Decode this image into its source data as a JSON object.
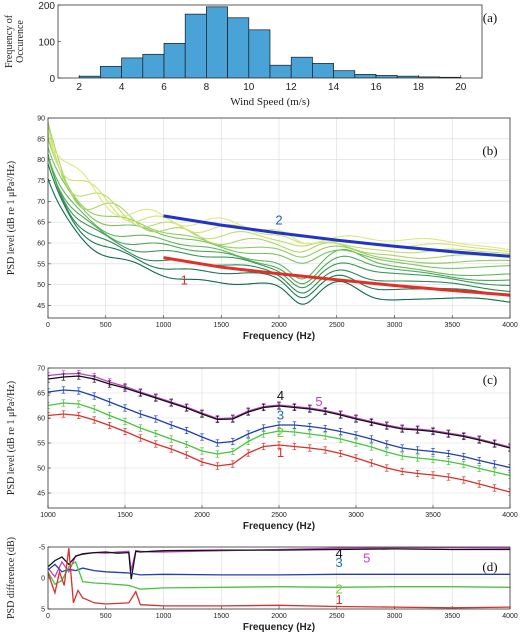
{
  "chart_data": [
    {
      "panel": "(a)",
      "type": "bar",
      "xlabel": "Wind Speed (m/s)",
      "ylabel": [
        "Frequency of",
        "Occurence"
      ],
      "xlim": [
        1,
        21
      ],
      "ylim": [
        0,
        200
      ],
      "xticks": [
        2,
        4,
        6,
        8,
        10,
        12,
        14,
        16,
        18,
        20
      ],
      "yticks": [
        0,
        100,
        200
      ],
      "bar_color": "#4aa3d6",
      "bins": [
        {
          "x0": 2,
          "x1": 3,
          "value": 5
        },
        {
          "x0": 3,
          "x1": 4,
          "value": 32
        },
        {
          "x0": 4,
          "x1": 5,
          "value": 55
        },
        {
          "x0": 5,
          "x1": 6,
          "value": 65
        },
        {
          "x0": 6,
          "x1": 7,
          "value": 95
        },
        {
          "x0": 7,
          "x1": 8,
          "value": 175
        },
        {
          "x0": 8,
          "x1": 9,
          "value": 195
        },
        {
          "x0": 9,
          "x1": 10,
          "value": 165
        },
        {
          "x0": 10,
          "x1": 11,
          "value": 132
        },
        {
          "x0": 11,
          "x1": 12,
          "value": 35
        },
        {
          "x0": 12,
          "x1": 13,
          "value": 57
        },
        {
          "x0": 13,
          "x1": 14,
          "value": 40
        },
        {
          "x0": 14,
          "x1": 15,
          "value": 20
        },
        {
          "x0": 15,
          "x1": 16,
          "value": 10
        },
        {
          "x0": 16,
          "x1": 17,
          "value": 7
        },
        {
          "x0": 17,
          "x1": 18,
          "value": 5
        },
        {
          "x0": 18,
          "x1": 19,
          "value": 3
        },
        {
          "x0": 19,
          "x1": 20,
          "value": 2
        }
      ]
    },
    {
      "panel": "(b)",
      "type": "line",
      "xlabel": "Frequency (Hz)",
      "ylabel": "PSD level (dB re 1 μPa²/Hz)",
      "xlim": [
        0,
        4000
      ],
      "ylim": [
        42,
        90
      ],
      "xticks": [
        0,
        500,
        1000,
        1500,
        2000,
        2500,
        3000,
        3500,
        4000
      ],
      "yticks": [
        45,
        50,
        55,
        60,
        65,
        70,
        75,
        80,
        85,
        90
      ],
      "grid": true,
      "family_colors": [
        "#0f6b4c",
        "#1c7a50",
        "#2a8a55",
        "#3a9a58",
        "#4da95a",
        "#62b65c",
        "#7ac25e",
        "#92cc62",
        "#a9d566",
        "#bedd6c",
        "#d0e473",
        "#dde97c"
      ],
      "family_levels_at_4000": [
        44.5,
        46.5,
        48,
        49.5,
        50.5,
        51.5,
        53,
        54,
        55,
        56,
        57,
        58
      ],
      "series": [
        {
          "name": "1",
          "color": "#e0302a",
          "x": [
            1000,
            1500,
            2000,
            2500,
            3000,
            3500,
            4000
          ],
          "y": [
            56.5,
            54.2,
            52.6,
            51.2,
            49.8,
            48.6,
            47.5
          ]
        },
        {
          "name": "2",
          "color": "#2035c8",
          "x": [
            1000,
            1500,
            2000,
            2500,
            3000,
            3500,
            4000
          ],
          "y": [
            66.5,
            64.3,
            62.4,
            60.7,
            59.2,
            57.9,
            56.8
          ]
        }
      ],
      "annotations": [
        {
          "text": "2",
          "x": 2000,
          "y": 64.5,
          "color": "#2a5fa8"
        },
        {
          "text": "1",
          "x": 1180,
          "y": 50,
          "color": "#d8302a"
        }
      ]
    },
    {
      "panel": "(c)",
      "type": "line",
      "xlabel": "Frequency (Hz)",
      "ylabel": "PSD level (dB re 1 μPa²/Hz)",
      "xlim": [
        1000,
        4000
      ],
      "ylim": [
        42,
        70
      ],
      "xticks": [
        1000,
        1500,
        2000,
        2500,
        3000,
        3500,
        4000
      ],
      "yticks": [
        45,
        50,
        55,
        60,
        65,
        70
      ],
      "grid": true,
      "error_bars": true,
      "x": [
        1000,
        1100,
        1200,
        1300,
        1400,
        1500,
        1600,
        1700,
        1800,
        1900,
        2000,
        2100,
        2200,
        2300,
        2400,
        2500,
        2600,
        2700,
        2800,
        2900,
        3000,
        3100,
        3200,
        3300,
        3400,
        3500,
        3600,
        3700,
        3800,
        3900,
        4000
      ],
      "series": [
        {
          "name": "5",
          "color": "#c040c8",
          "y": [
            68.5,
            68.8,
            68.9,
            68.3,
            67.2,
            66.3,
            65.2,
            64.2,
            63.2,
            62.2,
            61.0,
            59.9,
            60.0,
            61.4,
            62.3,
            62.6,
            62.3,
            62.0,
            61.5,
            60.8,
            60.0,
            59.3,
            58.6,
            58.0,
            57.8,
            57.5,
            57.0,
            56.5,
            55.8,
            55.0,
            54.2
          ]
        },
        {
          "name": "4",
          "color": "#111111",
          "y": [
            67.8,
            68.2,
            68.4,
            67.8,
            66.8,
            66.0,
            65.0,
            64.0,
            63.0,
            62.0,
            60.8,
            59.7,
            59.8,
            61.2,
            62.1,
            62.4,
            62.1,
            61.8,
            61.3,
            60.6,
            59.8,
            59.1,
            58.4,
            57.8,
            57.6,
            57.3,
            56.8,
            56.3,
            55.6,
            54.8,
            54.0
          ]
        },
        {
          "name": "3",
          "color": "#1f3fb0",
          "y": [
            65.2,
            65.6,
            65.4,
            64.4,
            63.2,
            62.0,
            60.8,
            59.8,
            58.6,
            57.5,
            56.2,
            55.0,
            55.3,
            56.8,
            58.0,
            58.6,
            58.6,
            58.3,
            57.9,
            57.3,
            56.6,
            55.8,
            54.8,
            54.0,
            53.6,
            53.3,
            52.9,
            52.3,
            51.5,
            50.8,
            50.1
          ]
        },
        {
          "name": "2",
          "color": "#48c43e",
          "y": [
            62.5,
            63.0,
            62.8,
            61.8,
            60.5,
            59.3,
            58.0,
            56.9,
            55.8,
            54.7,
            53.4,
            52.8,
            53.3,
            55.3,
            56.8,
            57.4,
            57.2,
            56.8,
            56.4,
            55.8,
            55.0,
            54.2,
            53.2,
            52.4,
            52.0,
            51.7,
            51.3,
            50.7,
            49.9,
            49.2,
            48.5
          ]
        },
        {
          "name": "1",
          "color": "#d8302a",
          "y": [
            60.5,
            60.8,
            60.5,
            59.6,
            58.5,
            57.3,
            56.0,
            54.8,
            53.8,
            52.6,
            51.2,
            50.4,
            50.8,
            53.0,
            54.3,
            54.6,
            54.3,
            54.0,
            53.6,
            52.9,
            52.0,
            51.0,
            50.0,
            49.3,
            48.9,
            48.6,
            48.2,
            47.6,
            46.8,
            46.0,
            45.2
          ]
        }
      ],
      "annotations": [
        {
          "text": "4",
          "x": 2510,
          "y": 63.6,
          "color": "#111111"
        },
        {
          "text": "5",
          "x": 2760,
          "y": 62.4,
          "color": "#c040c8"
        },
        {
          "text": "3",
          "x": 2510,
          "y": 59.7,
          "color": "#1f6fa8"
        },
        {
          "text": "2",
          "x": 2510,
          "y": 56.2,
          "color": "#7ac840"
        },
        {
          "text": "1",
          "x": 2510,
          "y": 52.2,
          "color": "#d8302a"
        }
      ]
    },
    {
      "panel": "(d)",
      "type": "line",
      "xlabel": "Frequency (Hz)",
      "ylabel": "PSD difference (dB)",
      "xlim": [
        0,
        4000
      ],
      "ylim": [
        -5,
        5
      ],
      "y_inverted": true,
      "xticks": [
        0,
        500,
        1000,
        1500,
        2000,
        2500,
        3000,
        3500,
        4000
      ],
      "yticks": [
        -5,
        0,
        5
      ],
      "grid": true,
      "series": [
        {
          "name": "5",
          "color": "#c040c8",
          "x": [
            0,
            60,
            120,
            180,
            240,
            300,
            400,
            500,
            600,
            700,
            720,
            760,
            800,
            900,
            1000,
            1500,
            2000,
            2500,
            3000,
            3500,
            4000
          ],
          "y": [
            -1.6,
            -0.2,
            -2.6,
            -1.0,
            -3.6,
            -3.8,
            -4.1,
            -4.0,
            -4.2,
            -4.3,
            -1.2,
            -4.4,
            -4.3,
            -4.2,
            -4.2,
            -4.4,
            -4.6,
            -4.8,
            -4.9,
            -4.9,
            -4.8
          ]
        },
        {
          "name": "4",
          "color": "#111111",
          "x": [
            0,
            60,
            120,
            180,
            240,
            300,
            400,
            500,
            600,
            700,
            720,
            760,
            800,
            900,
            1000,
            1500,
            2000,
            2500,
            3000,
            3500,
            4000
          ],
          "y": [
            -1.8,
            -2.8,
            -3.4,
            -2.2,
            -3.5,
            -3.9,
            -4.1,
            -4.2,
            -4.0,
            -4.1,
            0.2,
            -4.3,
            -4.2,
            -4.3,
            -4.4,
            -4.5,
            -4.5,
            -4.6,
            -4.7,
            -4.6,
            -4.6
          ]
        },
        {
          "name": "3",
          "color": "#1f3fb0",
          "x": [
            0,
            60,
            120,
            180,
            240,
            300,
            400,
            500,
            700,
            800,
            1000,
            1500,
            2000,
            2500,
            3000,
            3500,
            4000
          ],
          "y": [
            -1.3,
            -2.2,
            -1.0,
            -1.4,
            -1.2,
            -1.6,
            -1.2,
            -1.0,
            -0.8,
            -0.5,
            -0.6,
            -0.5,
            -0.5,
            -0.6,
            -0.6,
            -0.6,
            -0.6
          ]
        },
        {
          "name": "2",
          "color": "#48c43e",
          "x": [
            0,
            60,
            120,
            180,
            240,
            300,
            400,
            500,
            700,
            800,
            1000,
            1500,
            2000,
            2500,
            3000,
            3500,
            4000
          ],
          "y": [
            -1.0,
            1.0,
            0.4,
            -1.8,
            -2.6,
            0.6,
            0.8,
            0.9,
            1.2,
            1.8,
            1.6,
            1.5,
            1.4,
            1.5,
            1.4,
            1.4,
            1.5
          ]
        },
        {
          "name": "1",
          "color": "#d8302a",
          "x": [
            0,
            60,
            100,
            140,
            180,
            220,
            260,
            300,
            400,
            500,
            700,
            760,
            800,
            1000,
            1500,
            2000,
            2500,
            3000,
            3500,
            4000
          ],
          "y": [
            -0.8,
            2.4,
            -1.0,
            1.2,
            -4.8,
            4.0,
            2.0,
            3.2,
            4.0,
            4.2,
            4.0,
            2.2,
            4.3,
            4.5,
            4.5,
            4.4,
            4.6,
            4.7,
            4.8,
            4.7
          ]
        }
      ],
      "annotations": [
        {
          "text": "4",
          "x": 2520,
          "y": -3.2,
          "color": "#111111"
        },
        {
          "text": "5",
          "x": 2760,
          "y": -2.5,
          "color": "#c040c8"
        },
        {
          "text": "3",
          "x": 2520,
          "y": -1.8,
          "color": "#1f6fa8"
        },
        {
          "text": "2",
          "x": 2520,
          "y": 2.5,
          "color": "#7ac840"
        },
        {
          "text": "1",
          "x": 2520,
          "y": 4.2,
          "color": "#d8302a"
        }
      ]
    }
  ]
}
